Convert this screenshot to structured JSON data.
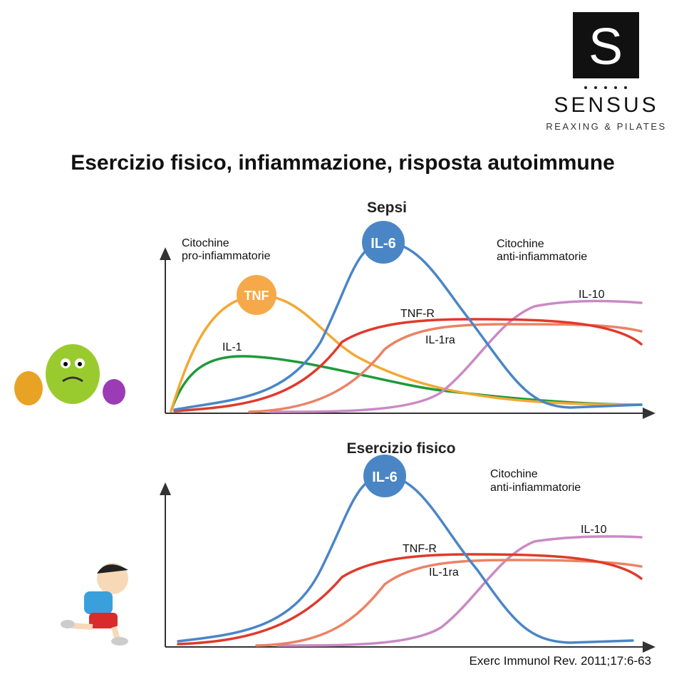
{
  "logo": {
    "mark": "S",
    "name": "SENSUS",
    "tagline": "REAXING & PILATES"
  },
  "title": "Esercizio fisico, infiammazione, risposta autoimmune",
  "panels": [
    {
      "title": "Sepsi",
      "groups": [
        [
          "Citochine",
          "pro-infiammatorie"
        ],
        [
          "Citochine",
          "anti-infiammatorie"
        ]
      ],
      "curves": {
        "tnf": "TNF",
        "il6": "IL-6",
        "il1": "IL-1",
        "tnfr": "TNF-R",
        "il1ra": "IL-1ra",
        "il10": "IL-10"
      }
    },
    {
      "title": "Esercizio fisico",
      "groups": [
        [
          "Citochine",
          "anti-infiammatorie"
        ]
      ],
      "curves": {
        "il6": "IL-6",
        "tnfr": "TNF-R",
        "il1ra": "IL-1ra",
        "il10": "IL-10"
      }
    }
  ],
  "citation": "Exerc Immunol Rev. 2011;17:6-63"
}
